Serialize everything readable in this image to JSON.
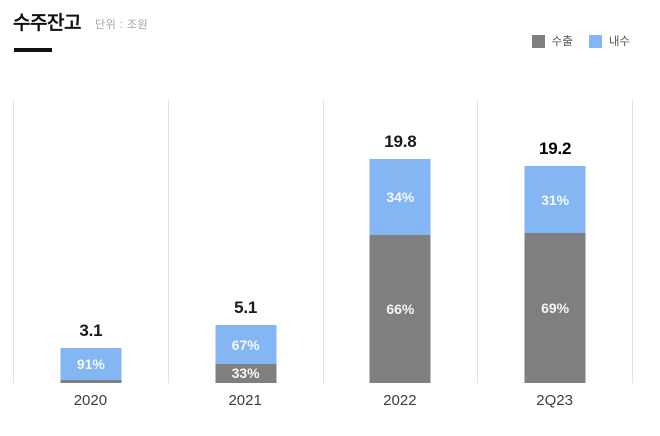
{
  "header": {
    "title": "수주잔고",
    "unit": "단위 : 조원"
  },
  "legend": {
    "position": "top-right",
    "items": [
      {
        "key": "export",
        "label": "수출",
        "color": "#7f7f7f"
      },
      {
        "key": "domestic",
        "label": "내수",
        "color": "#84b6f3"
      }
    ]
  },
  "chart_data": {
    "type": "bar",
    "stacked": true,
    "title": "수주잔고",
    "unit": "조원",
    "categories": [
      "2020",
      "2021",
      "2022",
      "2Q23"
    ],
    "totals": [
      3.1,
      5.1,
      19.8,
      19.2
    ],
    "total_labels": [
      "3.1",
      "5.1",
      "19.8",
      "19.2"
    ],
    "emphasized_total_index": 3,
    "series": [
      {
        "name": "수출",
        "key": "export",
        "color": "#7f7f7f",
        "pct": [
          9,
          33,
          66,
          69
        ],
        "pct_labels": [
          "",
          "33%",
          "66%",
          "69%"
        ]
      },
      {
        "name": "내수",
        "key": "domestic",
        "color": "#84b6f3",
        "pct": [
          91,
          67,
          34,
          31
        ],
        "pct_labels": [
          "91%",
          "67%",
          "34%",
          "31%"
        ]
      }
    ],
    "ylim": [
      0,
      25
    ],
    "grid": "vertical-column-separators",
    "axis_line": "none",
    "legend_position": "top-right"
  }
}
